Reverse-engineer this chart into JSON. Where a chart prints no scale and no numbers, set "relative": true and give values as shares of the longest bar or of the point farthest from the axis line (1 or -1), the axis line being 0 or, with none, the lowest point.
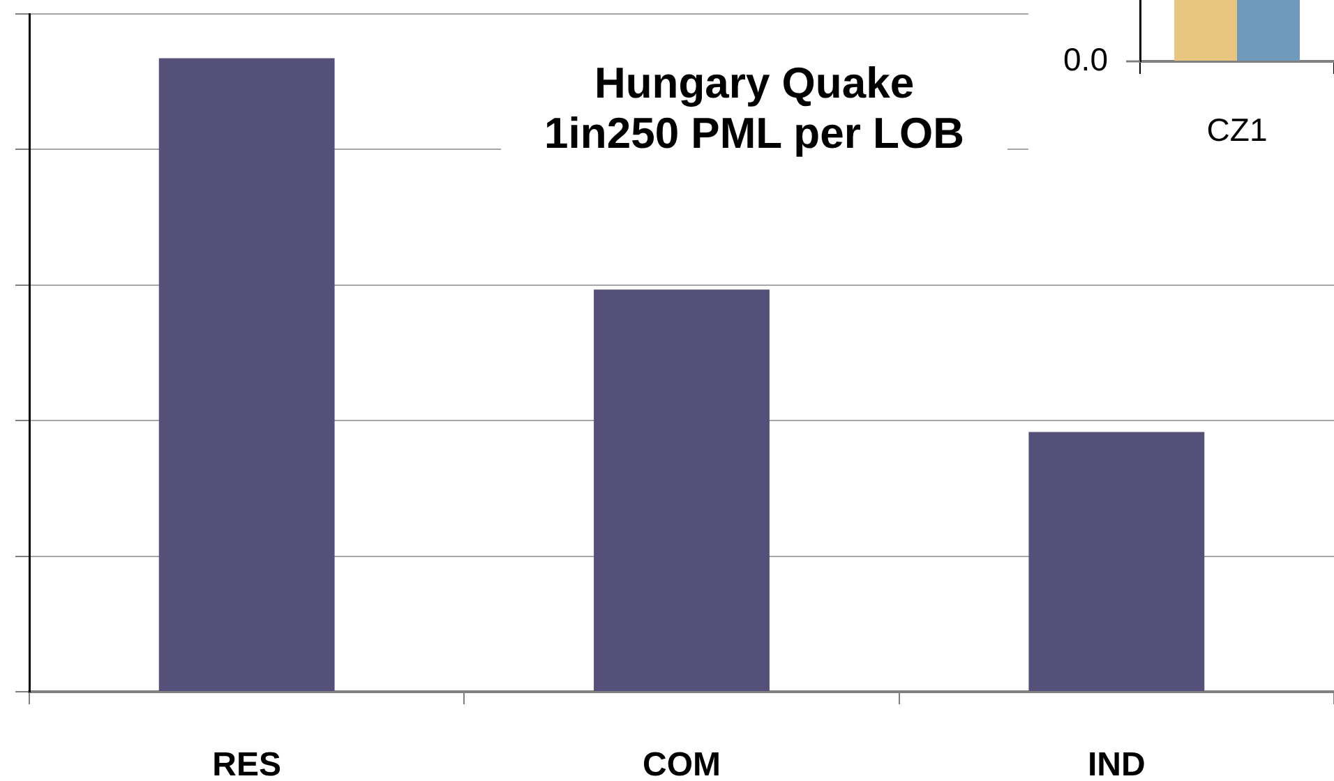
{
  "chart_data": [
    {
      "type": "bar",
      "title": "Hungary Quake\n1in250 PML per LOB",
      "categories": [
        "RES",
        "COM",
        "IND"
      ],
      "relative": true,
      "values": [
        1,
        0.635,
        0.41
      ],
      "color": "#55507a",
      "grid": "y"
    },
    {
      "type": "bar",
      "categories": [
        "CZ1"
      ],
      "relative": true,
      "series": [
        {
          "color": "#e8c680",
          "values": [
            1
          ]
        },
        {
          "color": "#7099be",
          "values": [
            1
          ]
        }
      ],
      "annotations": [
        "0.0"
      ]
    }
  ]
}
